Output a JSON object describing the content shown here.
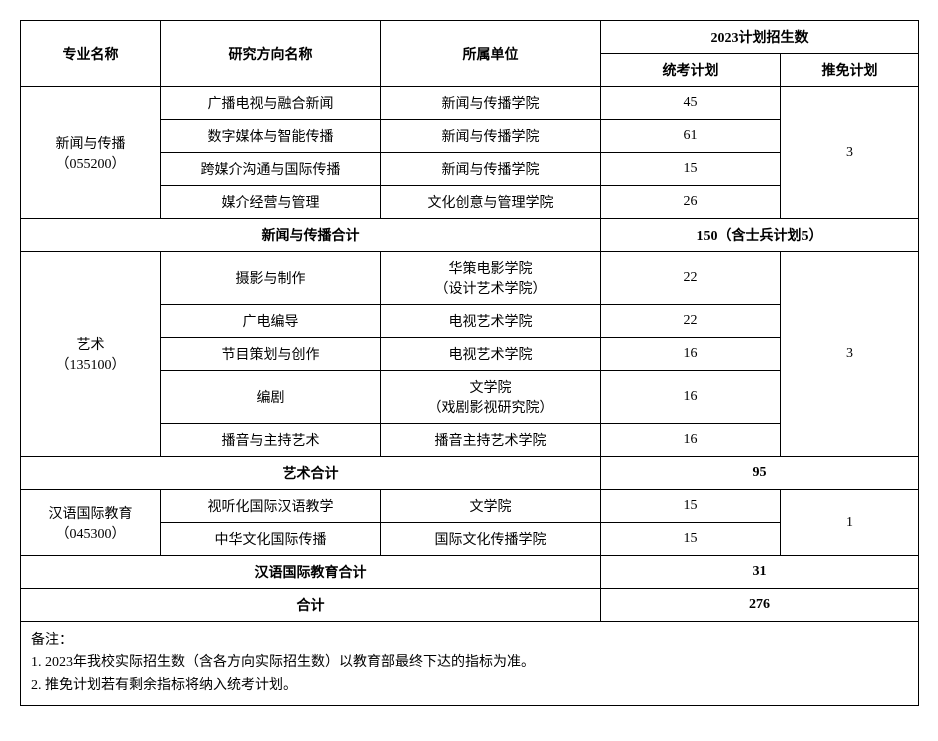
{
  "header": {
    "major": "专业名称",
    "direction": "研究方向名称",
    "dept": "所属单位",
    "plan_group": "2023计划招生数",
    "exam": "统考计划",
    "exempt": "推免计划"
  },
  "majors": [
    {
      "name_line1": "新闻与传播",
      "name_line2": "（055200）",
      "directions": [
        {
          "direction": "广播电视与融合新闻",
          "dept": "新闻与传播学院",
          "exam": "45"
        },
        {
          "direction": "数字媒体与智能传播",
          "dept": "新闻与传播学院",
          "exam": "61"
        },
        {
          "direction": "跨媒介沟通与国际传播",
          "dept": "新闻与传播学院",
          "exam": "15"
        },
        {
          "direction": "媒介经营与管理",
          "dept": "文化创意与管理学院",
          "exam": "26"
        }
      ],
      "exempt": "3",
      "subtotal_label": "新闻与传播合计",
      "subtotal_value": "150（含士兵计划5）"
    },
    {
      "name_line1": "艺术",
      "name_line2": "（135100）",
      "directions": [
        {
          "direction": "摄影与制作",
          "dept_line1": "华策电影学院",
          "dept_line2": "（设计艺术学院）",
          "exam": "22"
        },
        {
          "direction": "广电编导",
          "dept": "电视艺术学院",
          "exam": "22"
        },
        {
          "direction": "节目策划与创作",
          "dept": "电视艺术学院",
          "exam": "16"
        },
        {
          "direction": "编剧",
          "dept_line1": "文学院",
          "dept_line2": "（戏剧影视研究院）",
          "exam": "16"
        },
        {
          "direction": "播音与主持艺术",
          "dept": "播音主持艺术学院",
          "exam": "16"
        }
      ],
      "exempt": "3",
      "subtotal_label": "艺术合计",
      "subtotal_value": "95"
    },
    {
      "name_line1": "汉语国际教育",
      "name_line2": "（045300）",
      "directions": [
        {
          "direction": "视听化国际汉语教学",
          "dept": "文学院",
          "exam": "15"
        },
        {
          "direction": "中华文化国际传播",
          "dept": "国际文化传播学院",
          "exam": "15"
        }
      ],
      "exempt": "1",
      "subtotal_label": "汉语国际教育合计",
      "subtotal_value": "31"
    }
  ],
  "grand_total": {
    "label": "合计",
    "value": "276"
  },
  "notes": {
    "title": "备注：",
    "line1": "1. 2023年我校实际招生数（含各方向实际招生数）以教育部最终下达的指标为准。",
    "line2": "2. 推免计划若有剩余指标将纳入统考计划。"
  }
}
